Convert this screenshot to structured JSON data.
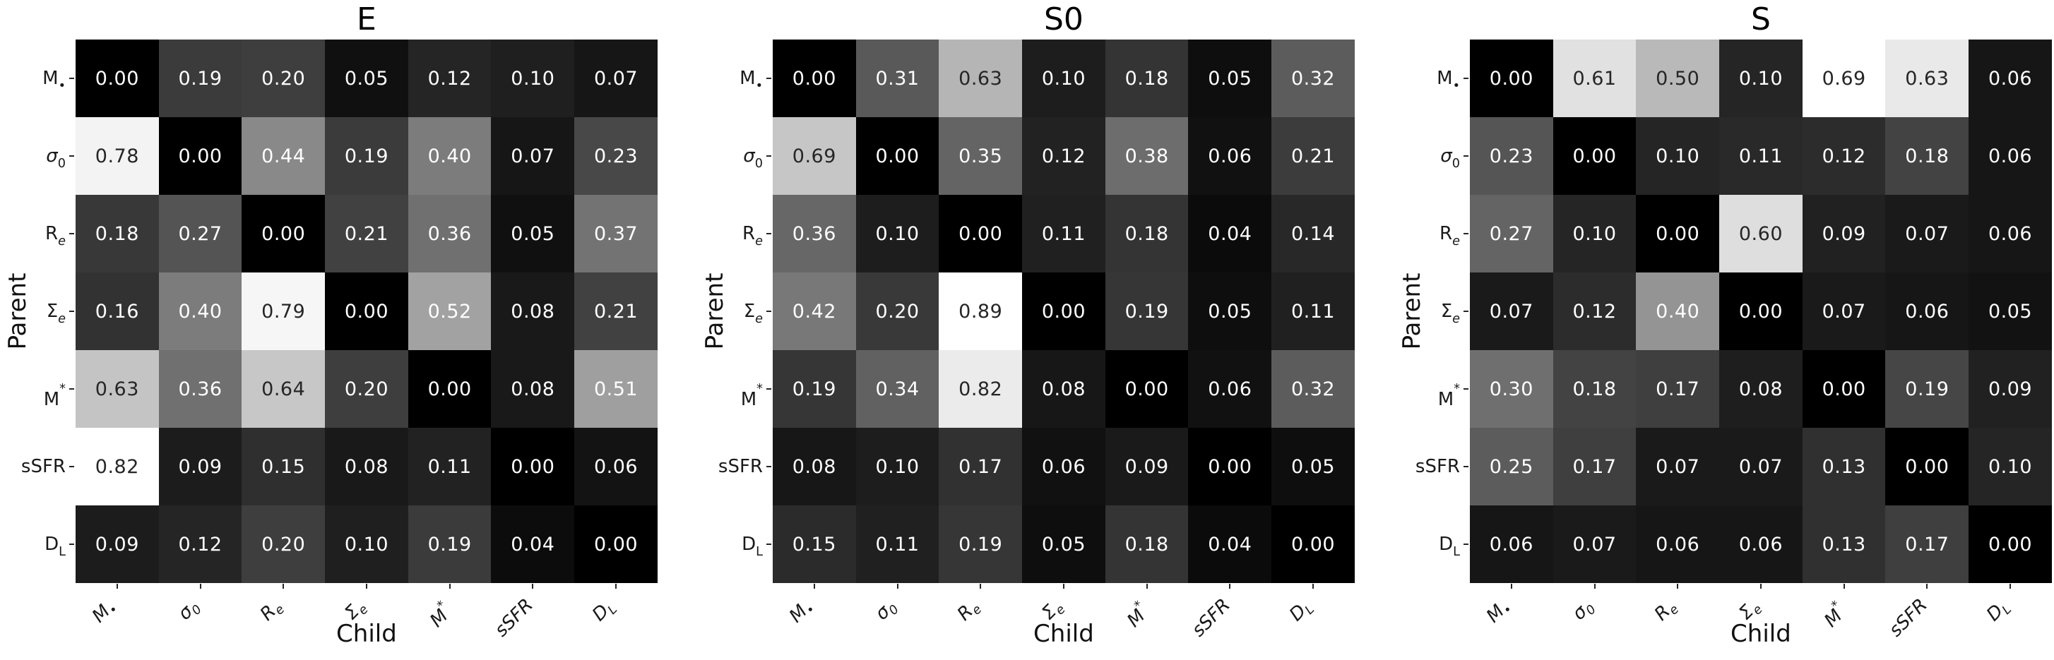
{
  "figure": {
    "background": "#ffffff",
    "text_color": "#000000",
    "tick_color": "#262626",
    "annotation_dark_text": "#262626",
    "annotation_light_text": "#ffffff",
    "variable_parts": [
      {
        "base": "M",
        "sub": "•"
      },
      {
        "base": "σ",
        "sub": "0",
        "base_italic": true
      },
      {
        "base": "R",
        "sub": "e",
        "sub_italic": true
      },
      {
        "base": "Σ",
        "sub": "e",
        "sub_italic": true
      },
      {
        "base": "M",
        "sup": "*"
      },
      {
        "base": "sSFR"
      },
      {
        "base": "D",
        "sub": "L"
      }
    ]
  },
  "chart_data": [
    {
      "type": "heatmap",
      "title": "E",
      "xlabel": "Child",
      "ylabel": "Parent",
      "categories": [
        "M•",
        "σ0",
        "Re",
        "Σe",
        "M*",
        "sSFR",
        "DL"
      ],
      "rows": [
        [
          0.0,
          0.19,
          0.2,
          0.05,
          0.12,
          0.1,
          0.07
        ],
        [
          0.78,
          0.0,
          0.44,
          0.19,
          0.4,
          0.07,
          0.23
        ],
        [
          0.18,
          0.27,
          0.0,
          0.21,
          0.36,
          0.05,
          0.37
        ],
        [
          0.16,
          0.4,
          0.79,
          0.0,
          0.52,
          0.08,
          0.21
        ],
        [
          0.63,
          0.36,
          0.64,
          0.2,
          0.0,
          0.08,
          0.51
        ],
        [
          0.82,
          0.09,
          0.15,
          0.08,
          0.11,
          0.0,
          0.06
        ],
        [
          0.09,
          0.12,
          0.2,
          0.1,
          0.19,
          0.04,
          0.0
        ]
      ],
      "vmin": 0,
      "vmax": 0.82,
      "colormap": "linear gray: 0 = black, panel max = white",
      "annotation_format": "0.00",
      "grid": false,
      "legend": false
    },
    {
      "type": "heatmap",
      "title": "S0",
      "xlabel": "Child",
      "ylabel": "Parent",
      "categories": [
        "M•",
        "σ0",
        "Re",
        "Σe",
        "M*",
        "sSFR",
        "DL"
      ],
      "rows": [
        [
          0.0,
          0.31,
          0.63,
          0.1,
          0.18,
          0.05,
          0.32
        ],
        [
          0.69,
          0.0,
          0.35,
          0.12,
          0.38,
          0.06,
          0.21
        ],
        [
          0.36,
          0.1,
          0.0,
          0.11,
          0.18,
          0.04,
          0.14
        ],
        [
          0.42,
          0.2,
          0.89,
          0.0,
          0.19,
          0.05,
          0.11
        ],
        [
          0.19,
          0.34,
          0.82,
          0.08,
          0.0,
          0.06,
          0.32
        ],
        [
          0.08,
          0.1,
          0.17,
          0.06,
          0.09,
          0.0,
          0.05
        ],
        [
          0.15,
          0.11,
          0.19,
          0.05,
          0.18,
          0.04,
          0.0
        ]
      ],
      "vmin": 0,
      "vmax": 0.89,
      "colormap": "linear gray: 0 = black, panel max = white",
      "annotation_format": "0.00",
      "grid": false,
      "legend": false
    },
    {
      "type": "heatmap",
      "title": "S",
      "xlabel": "Child",
      "ylabel": "Parent",
      "categories": [
        "M•",
        "σ0",
        "Re",
        "Σe",
        "M*",
        "sSFR",
        "DL"
      ],
      "rows": [
        [
          0.0,
          0.61,
          0.5,
          0.1,
          0.69,
          0.63,
          0.06
        ],
        [
          0.23,
          0.0,
          0.1,
          0.11,
          0.12,
          0.18,
          0.06
        ],
        [
          0.27,
          0.1,
          0.0,
          0.6,
          0.09,
          0.07,
          0.06
        ],
        [
          0.07,
          0.12,
          0.4,
          0.0,
          0.07,
          0.06,
          0.05
        ],
        [
          0.3,
          0.18,
          0.17,
          0.08,
          0.0,
          0.19,
          0.09
        ],
        [
          0.25,
          0.17,
          0.07,
          0.07,
          0.13,
          0.0,
          0.1
        ],
        [
          0.06,
          0.07,
          0.06,
          0.06,
          0.13,
          0.17,
          0.0
        ]
      ],
      "vmin": 0,
      "vmax": 0.69,
      "colormap": "linear gray: 0 = black, panel max = white",
      "annotation_format": "0.00",
      "grid": false,
      "legend": false
    }
  ]
}
